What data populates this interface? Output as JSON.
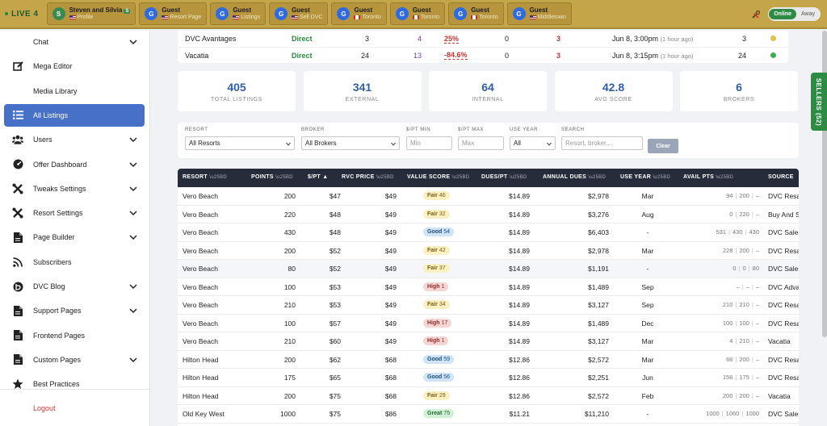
{
  "live_bar": {
    "label": "LIVE 4",
    "sessions": [
      {
        "avatar": "S",
        "name": "Steven and Silvia",
        "badge": "S",
        "flag": "us",
        "page": "Profile",
        "avatar_color": "green"
      },
      {
        "avatar": "G",
        "name": "Guest",
        "flag": "us",
        "page": "Resort Page"
      },
      {
        "avatar": "G",
        "name": "Guest",
        "flag": "us",
        "page": "Listings"
      },
      {
        "avatar": "G",
        "name": "Guest",
        "flag": "us",
        "page": "Sell DVC"
      },
      {
        "avatar": "G",
        "name": "Guest",
        "flag": "ca",
        "page": "Toronto"
      },
      {
        "avatar": "G",
        "name": "Guest",
        "flag": "ca",
        "page": "Toronto"
      },
      {
        "avatar": "G",
        "name": "Guest",
        "flag": "ca",
        "page": "Toronto"
      },
      {
        "avatar": "G",
        "name": "Guest",
        "flag": "us",
        "page": "Middletown"
      }
    ],
    "status_online": "Online",
    "status_away": "Away"
  },
  "sidebar": {
    "items": [
      {
        "label": "Chat",
        "icon": "none",
        "chevron": true
      },
      {
        "label": "Mega Editor",
        "icon": "edit-icon",
        "chevron": false
      },
      {
        "label": "Media Library",
        "icon": "none",
        "chevron": false
      },
      {
        "label": "All Listings",
        "icon": "list-icon",
        "chevron": false,
        "active": true
      },
      {
        "label": "Users",
        "icon": "users-icon",
        "chevron": true
      },
      {
        "label": "Offer Dashboard",
        "icon": "dashboard-icon",
        "chevron": true
      },
      {
        "label": "Tweaks Settings",
        "icon": "tools-icon",
        "chevron": true
      },
      {
        "label": "Resort Settings",
        "icon": "tools-icon",
        "chevron": true
      },
      {
        "label": "Page Builder",
        "icon": "page-icon",
        "chevron": true
      },
      {
        "label": "Subscribers",
        "icon": "rss-icon",
        "chevron": false
      },
      {
        "label": "DVC Blog",
        "icon": "blog-icon",
        "chevron": true
      },
      {
        "label": "Support Pages",
        "icon": "page-icon",
        "chevron": true
      },
      {
        "label": "Frontend Pages",
        "icon": "page-icon",
        "chevron": false
      },
      {
        "label": "Custom Pages",
        "icon": "page-icon",
        "chevron": true
      },
      {
        "label": "Best Practices",
        "icon": "star-icon",
        "chevron": false
      }
    ],
    "logout": "Logout"
  },
  "broker_rows": [
    {
      "name": "DVC Avantages",
      "type": "Direct",
      "c1": "3",
      "c2": "4",
      "pct": "25%",
      "c3": "0",
      "c4": "3",
      "time": "Jun 8, 3:00pm",
      "ago": "(1 hour ago)",
      "count": "3",
      "dot": "#e2c24a"
    },
    {
      "name": "Vacatia",
      "type": "Direct",
      "c1": "24",
      "c2": "13",
      "pct": "-84.6%",
      "c3": "0",
      "c4": "3",
      "time": "Jun 8, 3:15pm",
      "ago": "(1 hour ago)",
      "count": "24",
      "dot": "#3fae4f"
    }
  ],
  "stats": [
    {
      "value": "405",
      "label": "TOTAL LISTINGS"
    },
    {
      "value": "341",
      "label": "EXTERNAL"
    },
    {
      "value": "64",
      "label": "INTERNAL"
    },
    {
      "value": "42.8",
      "label": "AVG SCORE"
    },
    {
      "value": "6",
      "label": "BROKERS"
    }
  ],
  "filters": {
    "resort_label": "RESORT",
    "resort_value": "All Resorts",
    "broker_label": "BROKER",
    "broker_value": "All Brokers",
    "min_label": "$/PT MIN",
    "min_placeholder": "Min",
    "max_label": "$/PT MAX",
    "max_placeholder": "Max",
    "year_label": "USE YEAR",
    "year_value": "All",
    "search_label": "SEARCH",
    "search_placeholder": "Resort, broker...",
    "clear": "Clear"
  },
  "table": {
    "headers": {
      "resort": "RESORT",
      "points": "POINTS",
      "ppt": "$/PT ▲",
      "rvc": "RVC PRICE",
      "score": "VALUE SCORE",
      "dues_pt": "DUES/PT",
      "annual": "ANNUAL DUES",
      "use_year": "USE YEAR",
      "avail": "AVAIL PTS",
      "source": "SOURCE",
      "unit": "\\u25BD"
    },
    "rows": [
      {
        "resort": "Vero Beach",
        "points": "200",
        "ppt": "$47",
        "rvc": "$49",
        "score": "Fair",
        "score_n": "46",
        "kind": "fair",
        "dues": "$14.89",
        "annual": "$2,978",
        "year": "Mar",
        "a1": "94",
        "a2": "200",
        "a3": "–",
        "source": "DVC Resa"
      },
      {
        "resort": "Vero Beach",
        "points": "220",
        "ppt": "$48",
        "rvc": "$49",
        "score": "Fair",
        "score_n": "32",
        "kind": "fair",
        "dues": "$14.89",
        "annual": "$3,276",
        "year": "Aug",
        "a1": "0",
        "a2": "220",
        "a3": "–",
        "source": "Buy And S"
      },
      {
        "resort": "Vero Beach",
        "points": "430",
        "ppt": "$48",
        "rvc": "$49",
        "score": "Good",
        "score_n": "54",
        "kind": "good",
        "dues": "$14.89",
        "annual": "$6,403",
        "year": "-",
        "a1": "531",
        "a2": "430",
        "a3": "430",
        "source": "DVC Sales"
      },
      {
        "resort": "Vero Beach",
        "points": "200",
        "ppt": "$52",
        "rvc": "$49",
        "score": "Fair",
        "score_n": "42",
        "kind": "fair",
        "dues": "$14.89",
        "annual": "$2,978",
        "year": "Mar",
        "a1": "228",
        "a2": "200",
        "a3": "–",
        "source": "DVC Resa"
      },
      {
        "resort": "Vero Beach",
        "points": "80",
        "ppt": "$52",
        "rvc": "$49",
        "score": "Fair",
        "score_n": "37",
        "kind": "fair",
        "dues": "$14.89",
        "annual": "$1,191",
        "year": "-",
        "a1": "0",
        "a2": "0",
        "a3": "80",
        "source": "DVC Sales",
        "shade": true
      },
      {
        "resort": "Vero Beach",
        "points": "100",
        "ppt": "$53",
        "rvc": "$49",
        "score": "High",
        "score_n": "1",
        "kind": "high",
        "dues": "$14.89",
        "annual": "$1,489",
        "year": "Sep",
        "a1": "–",
        "a2": "–",
        "a3": "–",
        "source": "DVC Adva"
      },
      {
        "resort": "Vero Beach",
        "points": "210",
        "ppt": "$53",
        "rvc": "$49",
        "score": "Fair",
        "score_n": "34",
        "kind": "fair",
        "dues": "$14.89",
        "annual": "$3,127",
        "year": "Sep",
        "a1": "210",
        "a2": "210",
        "a3": "–",
        "source": "DVC Resa"
      },
      {
        "resort": "Vero Beach",
        "points": "100",
        "ppt": "$57",
        "rvc": "$49",
        "score": "High",
        "score_n": "17",
        "kind": "high",
        "dues": "$14.89",
        "annual": "$1,489",
        "year": "Dec",
        "a1": "100",
        "a2": "100",
        "a3": "–",
        "source": "DVC Resa"
      },
      {
        "resort": "Vero Beach",
        "points": "210",
        "ppt": "$60",
        "rvc": "$49",
        "score": "High",
        "score_n": "1",
        "kind": "high",
        "dues": "$14.89",
        "annual": "$3,127",
        "year": "Mar",
        "a1": "4",
        "a2": "210",
        "a3": "–",
        "source": "Vacatia"
      },
      {
        "resort": "Hilton Head",
        "points": "200",
        "ppt": "$62",
        "rvc": "$68",
        "score": "Good",
        "score_n": "59",
        "kind": "good",
        "dues": "$12.86",
        "annual": "$2,572",
        "year": "Mar",
        "a1": "66",
        "a2": "200",
        "a3": "–",
        "source": "DVC Resa"
      },
      {
        "resort": "Hilton Head",
        "points": "175",
        "ppt": "$65",
        "rvc": "$68",
        "score": "Good",
        "score_n": "56",
        "kind": "good",
        "dues": "$12.86",
        "annual": "$2,251",
        "year": "Jun",
        "a1": "156",
        "a2": "175",
        "a3": "–",
        "source": "DVC Resa"
      },
      {
        "resort": "Hilton Head",
        "points": "200",
        "ppt": "$75",
        "rvc": "$68",
        "score": "Fair",
        "score_n": "29",
        "kind": "fair",
        "dues": "$12.86",
        "annual": "$2,572",
        "year": "Feb",
        "a1": "200",
        "a2": "200",
        "a3": "–",
        "source": "Vacatia"
      },
      {
        "resort": "Old Key West",
        "points": "1000",
        "ppt": "$75",
        "rvc": "$86",
        "score": "Great",
        "score_n": "75",
        "kind": "great",
        "dues": "$11.21",
        "annual": "$11,210",
        "year": "-",
        "a1": "1000",
        "a2": "1060",
        "a3": "1000",
        "source": "DVC Sales"
      }
    ]
  },
  "sellers_tab": "SELLERS (52)"
}
